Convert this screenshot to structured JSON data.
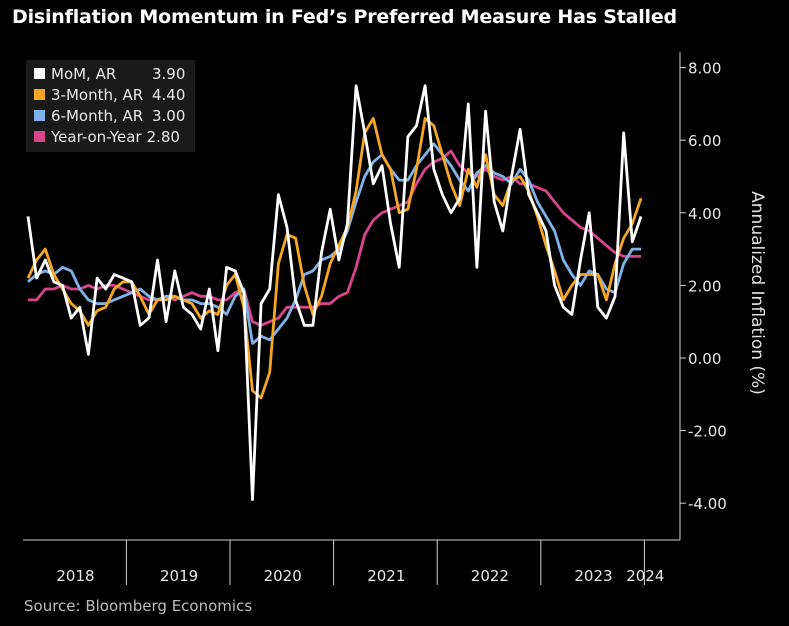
{
  "title": "Disinflation Momentum in Fed’s Preferred Measure Has Stalled",
  "source": "Source: Bloomberg Economics",
  "colors": {
    "mom": "#ffffff",
    "m3": "#f5a623",
    "m6": "#7fb3e8",
    "yoy": "#d8458c"
  },
  "chart_data": {
    "type": "line",
    "title": "Disinflation Momentum in Fed’s Preferred Measure Has Stalled",
    "ylabel": "Annualized Inflation (%)",
    "ylim": [
      -5,
      8.5
    ],
    "yticks": [
      "8.00",
      "6.00",
      "4.00",
      "2.00",
      "0.00",
      "-2.00",
      "-4.00"
    ],
    "ytick_values": [
      8,
      6,
      4,
      2,
      0,
      -2,
      -4
    ],
    "xlabels": [
      "2018",
      "2019",
      "2020",
      "2021",
      "2022",
      "2023",
      "2024"
    ],
    "x_start": "2018-01",
    "y_axis_position": "right",
    "legend_position": "top-left",
    "grid": false,
    "series": [
      {
        "name": "MoM, AR",
        "last": "3.90",
        "color": "#ffffff",
        "values": [
          3.9,
          2.2,
          2.7,
          2.1,
          2.0,
          1.1,
          1.4,
          0.1,
          2.2,
          1.9,
          2.3,
          2.2,
          2.1,
          0.9,
          1.1,
          2.7,
          1.0,
          2.4,
          1.4,
          1.2,
          0.8,
          1.9,
          0.2,
          2.5,
          2.4,
          1.8,
          -3.9,
          1.5,
          1.9,
          4.5,
          3.6,
          1.6,
          0.9,
          0.9,
          2.9,
          4.1,
          2.7,
          3.7,
          7.5,
          6.2,
          4.8,
          5.3,
          3.7,
          2.5,
          6.1,
          6.4,
          7.5,
          5.2,
          4.5,
          4.0,
          4.4,
          7.0,
          2.5,
          6.8,
          4.3,
          3.5,
          5.0,
          6.3,
          4.5,
          4.0,
          3.5,
          2.0,
          1.4,
          1.2,
          2.7,
          4.0,
          1.4,
          1.1,
          1.7,
          6.2,
          3.2,
          3.9
        ]
      },
      {
        "name": "3-Month, AR",
        "last": "4.40",
        "color": "#f5a623",
        "values": [
          2.2,
          2.7,
          3.0,
          2.3,
          1.9,
          1.5,
          1.3,
          0.9,
          1.3,
          1.4,
          1.9,
          2.1,
          2.1,
          1.7,
          1.2,
          1.6,
          1.6,
          1.7,
          1.6,
          1.5,
          1.1,
          1.3,
          1.2,
          2.0,
          2.3,
          1.4,
          -0.9,
          -1.1,
          -0.4,
          2.6,
          3.4,
          3.3,
          2.0,
          1.2,
          1.7,
          2.6,
          3.1,
          3.6,
          4.6,
          6.2,
          6.6,
          5.6,
          5.2,
          4.0,
          4.1,
          5.2,
          6.6,
          6.4,
          5.6,
          4.8,
          4.2,
          5.2,
          4.7,
          5.6,
          4.5,
          4.2,
          4.9,
          5.0,
          4.6,
          3.9,
          3.1,
          2.4,
          1.6,
          2.0,
          2.3,
          2.3,
          2.3,
          1.6,
          2.6,
          3.3,
          3.7,
          4.4
        ]
      },
      {
        "name": "6-Month, AR",
        "last": "3.00",
        "color": "#7fb3e8",
        "values": [
          2.1,
          2.3,
          2.4,
          2.3,
          2.5,
          2.4,
          1.9,
          1.6,
          1.5,
          1.5,
          1.6,
          1.7,
          1.8,
          1.9,
          1.7,
          1.6,
          1.7,
          1.7,
          1.6,
          1.6,
          1.5,
          1.5,
          1.4,
          1.2,
          1.7,
          1.9,
          0.4,
          0.6,
          0.5,
          0.8,
          1.1,
          1.6,
          2.3,
          2.4,
          2.7,
          2.8,
          3.0,
          3.5,
          4.3,
          5.0,
          5.4,
          5.6,
          5.2,
          4.9,
          4.9,
          5.3,
          5.6,
          5.9,
          5.6,
          5.3,
          4.9,
          4.6,
          5.1,
          5.3,
          5.1,
          5.0,
          4.8,
          5.2,
          4.9,
          4.3,
          3.9,
          3.5,
          2.7,
          2.3,
          2.0,
          2.4,
          2.3,
          1.9,
          1.8,
          2.6,
          3.0,
          3.0
        ]
      },
      {
        "name": "Year-on-Year",
        "last": "2.80",
        "color": "#d8458c",
        "values": [
          1.6,
          1.6,
          1.9,
          1.9,
          2.0,
          1.9,
          1.9,
          2.0,
          1.9,
          2.0,
          2.0,
          1.9,
          1.8,
          1.7,
          1.6,
          1.6,
          1.7,
          1.6,
          1.7,
          1.8,
          1.7,
          1.7,
          1.6,
          1.6,
          1.8,
          1.9,
          1.0,
          0.9,
          1.0,
          1.1,
          1.4,
          1.4,
          1.4,
          1.4,
          1.5,
          1.5,
          1.7,
          1.8,
          2.5,
          3.4,
          3.8,
          4.0,
          4.1,
          4.2,
          4.3,
          4.8,
          5.2,
          5.4,
          5.5,
          5.7,
          5.3,
          5.1,
          5.0,
          5.2,
          5.0,
          4.9,
          5.0,
          4.8,
          4.8,
          4.7,
          4.6,
          4.3,
          4.0,
          3.8,
          3.6,
          3.5,
          3.3,
          3.1,
          2.9,
          2.8,
          2.8,
          2.8
        ]
      }
    ]
  }
}
